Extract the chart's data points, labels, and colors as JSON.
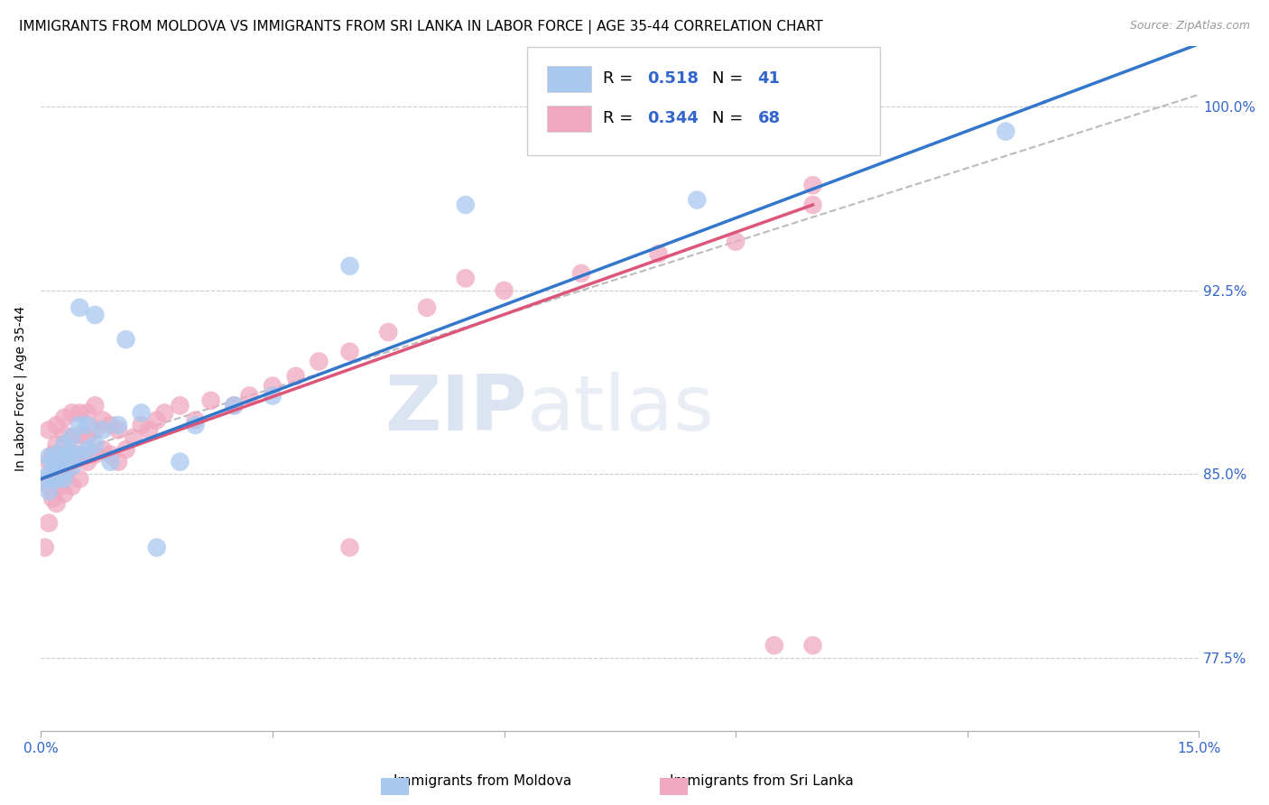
{
  "title": "IMMIGRANTS FROM MOLDOVA VS IMMIGRANTS FROM SRI LANKA IN LABOR FORCE | AGE 35-44 CORRELATION CHART",
  "source": "Source: ZipAtlas.com",
  "ylabel": "In Labor Force | Age 35-44",
  "xlim": [
    0.0,
    0.15
  ],
  "ylim": [
    0.745,
    1.025
  ],
  "xticks": [
    0.0,
    0.03,
    0.06,
    0.09,
    0.12,
    0.15
  ],
  "xticklabels": [
    "0.0%",
    "",
    "",
    "",
    "",
    "15.0%"
  ],
  "yticks": [
    0.775,
    0.85,
    0.925,
    1.0
  ],
  "yticklabels": [
    "77.5%",
    "85.0%",
    "92.5%",
    "100.0%"
  ],
  "moldova_R": 0.518,
  "moldova_N": 41,
  "srilanka_R": 0.344,
  "srilanka_N": 68,
  "moldova_color": "#a8c8f0",
  "srilanka_color": "#f0a8c0",
  "moldova_line_color": "#3377cc",
  "srilanka_line_color": "#dd5577",
  "diagonal_color": "#bbbbbb",
  "legend_label_moldova": "Immigrants from Moldova",
  "legend_label_srilanka": "Immigrants from Sri Lanka",
  "title_fontsize": 11,
  "axis_label_fontsize": 10,
  "tick_fontsize": 11,
  "legend_fontsize": 13,
  "watermark_zip": "ZIP",
  "watermark_atlas": "atlas",
  "watermark_color_zip": "#c0cfe8",
  "watermark_color_atlas": "#c0cfe8",
  "moldova_x": [
    0.0005,
    0.001,
    0.001,
    0.001,
    0.0015,
    0.0015,
    0.002,
    0.002,
    0.002,
    0.002,
    0.0025,
    0.0025,
    0.003,
    0.003,
    0.003,
    0.003,
    0.0035,
    0.004,
    0.004,
    0.004,
    0.005,
    0.005,
    0.005,
    0.006,
    0.006,
    0.007,
    0.007,
    0.008,
    0.009,
    0.01,
    0.011,
    0.013,
    0.015,
    0.018,
    0.02,
    0.025,
    0.03,
    0.04,
    0.055,
    0.085,
    0.125
  ],
  "moldova_y": [
    0.848,
    0.843,
    0.85,
    0.857,
    0.848,
    0.855,
    0.848,
    0.851,
    0.855,
    0.858,
    0.85,
    0.855,
    0.848,
    0.851,
    0.856,
    0.862,
    0.858,
    0.853,
    0.858,
    0.865,
    0.858,
    0.918,
    0.87,
    0.86,
    0.87,
    0.862,
    0.915,
    0.868,
    0.855,
    0.87,
    0.905,
    0.875,
    0.82,
    0.855,
    0.87,
    0.878,
    0.882,
    0.935,
    0.96,
    0.962,
    0.99
  ],
  "srilanka_x": [
    0.0005,
    0.001,
    0.001,
    0.001,
    0.001,
    0.0015,
    0.0015,
    0.002,
    0.002,
    0.002,
    0.002,
    0.002,
    0.0025,
    0.0025,
    0.003,
    0.003,
    0.003,
    0.003,
    0.003,
    0.0035,
    0.004,
    0.004,
    0.004,
    0.004,
    0.0045,
    0.005,
    0.005,
    0.005,
    0.005,
    0.006,
    0.006,
    0.006,
    0.007,
    0.007,
    0.007,
    0.008,
    0.008,
    0.009,
    0.009,
    0.01,
    0.01,
    0.011,
    0.012,
    0.013,
    0.014,
    0.015,
    0.016,
    0.018,
    0.02,
    0.022,
    0.025,
    0.027,
    0.03,
    0.033,
    0.036,
    0.04,
    0.045,
    0.05,
    0.06,
    0.07,
    0.08,
    0.09,
    0.095,
    0.1,
    0.1,
    0.1,
    0.055,
    0.04
  ],
  "srilanka_y": [
    0.82,
    0.83,
    0.845,
    0.855,
    0.868,
    0.84,
    0.858,
    0.838,
    0.848,
    0.856,
    0.862,
    0.87,
    0.845,
    0.858,
    0.842,
    0.85,
    0.858,
    0.866,
    0.873,
    0.852,
    0.845,
    0.856,
    0.865,
    0.875,
    0.858,
    0.848,
    0.858,
    0.866,
    0.875,
    0.855,
    0.865,
    0.875,
    0.858,
    0.868,
    0.878,
    0.86,
    0.872,
    0.858,
    0.87,
    0.855,
    0.868,
    0.86,
    0.865,
    0.87,
    0.868,
    0.872,
    0.875,
    0.878,
    0.872,
    0.88,
    0.878,
    0.882,
    0.886,
    0.89,
    0.896,
    0.9,
    0.908,
    0.918,
    0.925,
    0.932,
    0.94,
    0.945,
    0.78,
    0.78,
    0.96,
    0.968,
    0.93,
    0.82
  ]
}
